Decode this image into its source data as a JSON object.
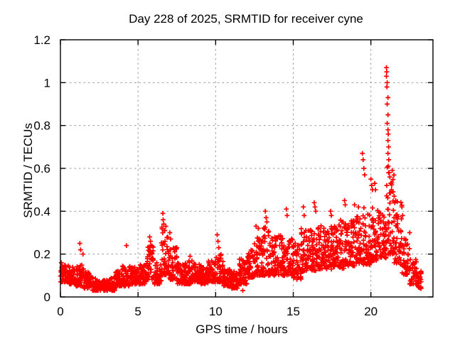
{
  "chart_data": {
    "type": "scatter",
    "title": "Day 228 of 2025, SRMTID for receiver cyne",
    "xlabel": "GPS time / hours",
    "ylabel": "SRMTID / TECUs",
    "xlim": [
      0,
      24
    ],
    "ylim": [
      0,
      1.2
    ],
    "xticks": {
      "values": [
        0,
        5,
        10,
        15,
        20
      ],
      "labels": [
        "0",
        "5",
        "10",
        "15",
        "20"
      ]
    },
    "yticks": {
      "values": [
        0,
        0.2,
        0.4,
        0.6,
        0.8,
        1.0,
        1.2
      ],
      "labels": [
        "0",
        "0.2",
        "0.4",
        "0.6",
        "0.8",
        "1",
        "1.2"
      ]
    },
    "grid": true,
    "legend": "none",
    "marker": {
      "shape": "plus",
      "color": "#ff0000",
      "size": 7
    },
    "x_end": 23.25,
    "bin_width": 0.5,
    "seed": 42,
    "envelope_bins": [
      [
        0.0,
        0.07,
        0.16,
        48
      ],
      [
        0.5,
        0.06,
        0.14,
        48
      ],
      [
        1.0,
        0.05,
        0.15,
        48
      ],
      [
        1.5,
        0.04,
        0.12,
        48
      ],
      [
        2.0,
        0.03,
        0.09,
        48
      ],
      [
        2.5,
        0.03,
        0.08,
        48
      ],
      [
        3.0,
        0.03,
        0.1,
        48
      ],
      [
        3.5,
        0.05,
        0.12,
        48
      ],
      [
        4.0,
        0.05,
        0.15,
        48
      ],
      [
        4.5,
        0.06,
        0.14,
        48
      ],
      [
        5.0,
        0.06,
        0.15,
        48
      ],
      [
        5.5,
        0.08,
        0.24,
        48
      ],
      [
        6.0,
        0.06,
        0.16,
        48
      ],
      [
        6.5,
        0.1,
        0.33,
        48
      ],
      [
        7.0,
        0.08,
        0.24,
        48
      ],
      [
        7.5,
        0.06,
        0.16,
        48
      ],
      [
        8.0,
        0.06,
        0.17,
        48
      ],
      [
        8.5,
        0.07,
        0.16,
        48
      ],
      [
        9.0,
        0.06,
        0.15,
        48
      ],
      [
        9.5,
        0.07,
        0.17,
        48
      ],
      [
        10.0,
        0.07,
        0.2,
        48
      ],
      [
        10.5,
        0.05,
        0.13,
        48
      ],
      [
        11.0,
        0.04,
        0.12,
        48
      ],
      [
        11.5,
        0.06,
        0.18,
        48
      ],
      [
        12.0,
        0.09,
        0.22,
        48
      ],
      [
        12.5,
        0.1,
        0.3,
        48
      ],
      [
        13.0,
        0.1,
        0.33,
        48
      ],
      [
        13.5,
        0.1,
        0.28,
        48
      ],
      [
        14.0,
        0.1,
        0.3,
        48
      ],
      [
        14.5,
        0.1,
        0.28,
        48
      ],
      [
        15.0,
        0.08,
        0.26,
        48
      ],
      [
        15.5,
        0.12,
        0.33,
        48
      ],
      [
        16.0,
        0.12,
        0.32,
        48
      ],
      [
        16.5,
        0.13,
        0.34,
        48
      ],
      [
        17.0,
        0.13,
        0.33,
        48
      ],
      [
        17.5,
        0.14,
        0.35,
        48
      ],
      [
        18.0,
        0.13,
        0.36,
        48
      ],
      [
        18.5,
        0.14,
        0.36,
        48
      ],
      [
        19.0,
        0.15,
        0.38,
        48
      ],
      [
        19.5,
        0.15,
        0.42,
        48
      ],
      [
        20.0,
        0.17,
        0.42,
        48
      ],
      [
        20.5,
        0.18,
        0.4,
        48
      ],
      [
        21.0,
        0.2,
        0.62,
        52
      ],
      [
        21.5,
        0.15,
        0.45,
        48
      ],
      [
        22.0,
        0.1,
        0.28,
        44
      ],
      [
        22.5,
        0.06,
        0.18,
        40
      ],
      [
        23.0,
        0.04,
        0.12,
        26
      ]
    ],
    "outliers": [
      [
        1.25,
        0.25
      ],
      [
        1.3,
        0.22
      ],
      [
        1.45,
        0.2
      ],
      [
        4.25,
        0.24
      ],
      [
        5.75,
        0.28
      ],
      [
        5.8,
        0.26
      ],
      [
        6.6,
        0.39
      ],
      [
        6.62,
        0.36
      ],
      [
        6.66,
        0.34
      ],
      [
        6.7,
        0.31
      ],
      [
        7.05,
        0.3
      ],
      [
        7.1,
        0.27
      ],
      [
        8.35,
        0.19
      ],
      [
        10.1,
        0.29
      ],
      [
        10.15,
        0.26
      ],
      [
        10.2,
        0.23
      ],
      [
        11.75,
        0.03
      ],
      [
        12.6,
        0.33
      ],
      [
        12.75,
        0.32
      ],
      [
        13.2,
        0.4
      ],
      [
        13.25,
        0.37
      ],
      [
        13.3,
        0.35
      ],
      [
        14.55,
        0.41
      ],
      [
        14.6,
        0.38
      ],
      [
        15.65,
        0.42
      ],
      [
        15.7,
        0.38
      ],
      [
        16.35,
        0.44
      ],
      [
        16.4,
        0.42
      ],
      [
        16.45,
        0.4
      ],
      [
        17.4,
        0.4
      ],
      [
        17.45,
        0.38
      ],
      [
        18.3,
        0.45
      ],
      [
        18.35,
        0.43
      ],
      [
        18.95,
        0.43
      ],
      [
        19.2,
        0.42
      ],
      [
        19.45,
        0.67
      ],
      [
        19.5,
        0.64
      ],
      [
        19.55,
        0.6
      ],
      [
        19.6,
        0.57
      ],
      [
        20.0,
        0.55
      ],
      [
        20.05,
        0.52
      ],
      [
        20.1,
        0.5
      ],
      [
        20.25,
        0.53
      ],
      [
        20.3,
        0.5
      ],
      [
        21.0,
        1.07
      ],
      [
        21.02,
        1.05
      ],
      [
        21.0,
        1.03
      ],
      [
        21.05,
        1.0
      ],
      [
        21.03,
        0.98
      ],
      [
        21.1,
        0.93
      ],
      [
        21.05,
        0.9
      ],
      [
        21.1,
        0.85
      ],
      [
        21.05,
        0.81
      ],
      [
        21.1,
        0.78
      ],
      [
        21.12,
        0.76
      ],
      [
        21.1,
        0.73
      ],
      [
        21.14,
        0.7
      ],
      [
        21.1,
        0.67
      ],
      [
        21.15,
        0.64
      ],
      [
        21.12,
        0.61
      ],
      [
        21.18,
        0.58
      ],
      [
        21.22,
        0.56
      ],
      [
        21.28,
        0.53
      ],
      [
        21.33,
        0.5
      ],
      [
        21.5,
        0.47
      ],
      [
        21.6,
        0.45
      ],
      [
        22.0,
        0.42
      ],
      [
        22.05,
        0.38
      ],
      [
        22.5,
        0.3
      ]
    ]
  },
  "colors": {
    "background": "#ffffff",
    "marker": "#ff0000",
    "grid": "#999999",
    "axis": "#000000",
    "text": "#000000"
  }
}
